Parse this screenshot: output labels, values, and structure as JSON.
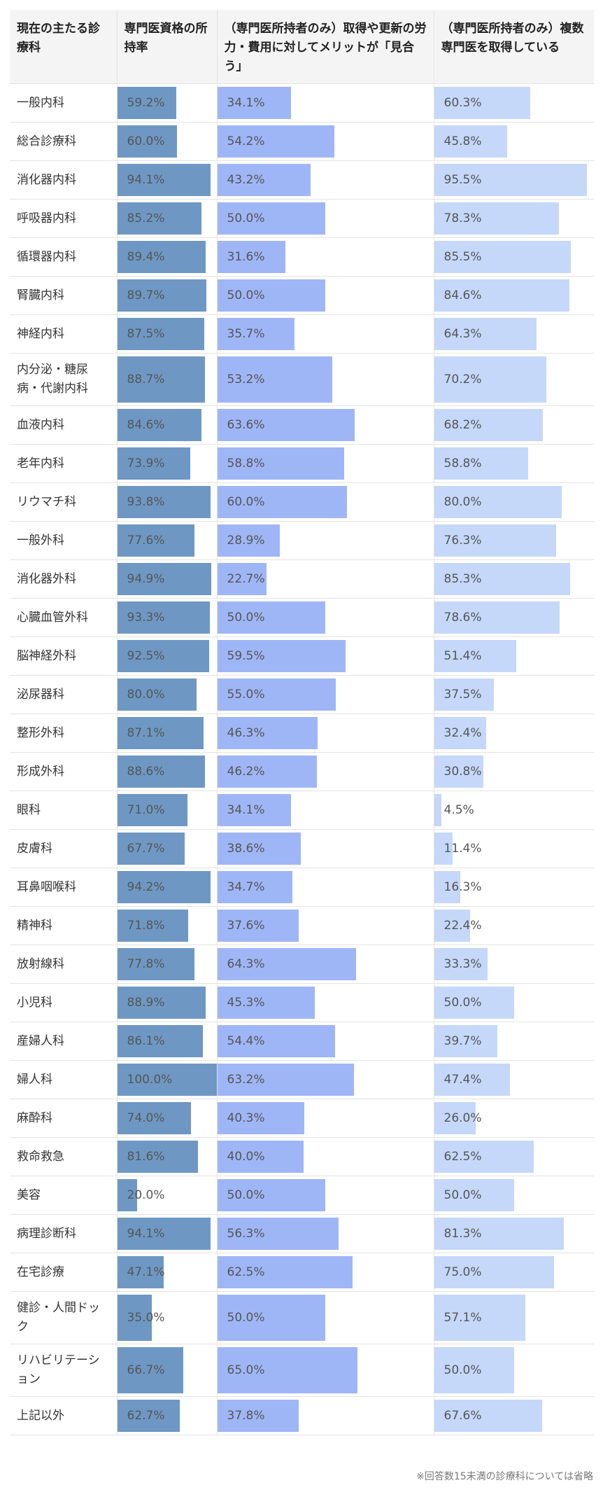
{
  "headers": {
    "col0": "現在の主たる診療科",
    "col1": "専門医資格の所持率",
    "col2": "（専門医所持者のみ）取得や更新の労力・費用に対してメリットが「見合う」",
    "col3": "（専門医所持者のみ）複数専門医を取得している"
  },
  "chart_data": {
    "type": "table",
    "categories": [
      "一般内科",
      "総合診療科",
      "消化器内科",
      "呼吸器内科",
      "循環器内科",
      "腎臓内科",
      "神経内科",
      "内分泌・糖尿病・代謝内科",
      "血液内科",
      "老年内科",
      "リウマチ科",
      "一般外科",
      "消化器外科",
      "心臓血管外科",
      "脳神経外科",
      "泌尿器科",
      "整形外科",
      "形成外科",
      "眼科",
      "皮膚科",
      "耳鼻咽喉科",
      "精神科",
      "放射線科",
      "小児科",
      "産婦人科",
      "婦人科",
      "麻酔科",
      "救命救急",
      "美容",
      "病理診断科",
      "在宅診療",
      "健診・人間ドック",
      "リハビリテーション",
      "上記以外"
    ],
    "series": [
      {
        "name": "専門医資格の所持率",
        "values": [
          59.2,
          60.0,
          94.1,
          85.2,
          89.4,
          89.7,
          87.5,
          88.7,
          84.6,
          73.9,
          93.8,
          77.6,
          94.9,
          93.3,
          92.5,
          80.0,
          87.1,
          88.6,
          71.0,
          67.7,
          94.2,
          71.8,
          77.8,
          88.9,
          86.1,
          100.0,
          74.0,
          81.6,
          20.0,
          94.1,
          47.1,
          35.0,
          66.7,
          62.7
        ]
      },
      {
        "name": "（専門医所持者のみ）取得や更新の労力・費用に対してメリットが「見合う」",
        "values": [
          34.1,
          54.2,
          43.2,
          50.0,
          31.6,
          50.0,
          35.7,
          53.2,
          63.6,
          58.8,
          60.0,
          28.9,
          22.7,
          50.0,
          59.5,
          55.0,
          46.3,
          46.2,
          34.1,
          38.6,
          34.7,
          37.6,
          64.3,
          45.3,
          54.4,
          63.2,
          40.3,
          40.0,
          50.0,
          56.3,
          62.5,
          50.0,
          65.0,
          37.8
        ]
      },
      {
        "name": "（専門医所持者のみ）複数専門医を取得している",
        "values": [
          60.3,
          45.8,
          95.5,
          78.3,
          85.5,
          84.6,
          64.3,
          70.2,
          68.2,
          58.8,
          80.0,
          76.3,
          85.3,
          78.6,
          51.4,
          37.5,
          32.4,
          30.8,
          4.5,
          11.4,
          16.3,
          22.4,
          33.3,
          50.0,
          39.7,
          47.4,
          26.0,
          62.5,
          50.0,
          81.3,
          75.0,
          57.1,
          50.0,
          67.6
        ]
      }
    ],
    "value_suffix": "%",
    "scale": [
      0,
      100
    ]
  },
  "colors": {
    "series1": "#6e98c3",
    "series2": "#9fb6f6",
    "series3": "#c5d8fa"
  },
  "footnote": "※回答数15未満の診療科については省略"
}
